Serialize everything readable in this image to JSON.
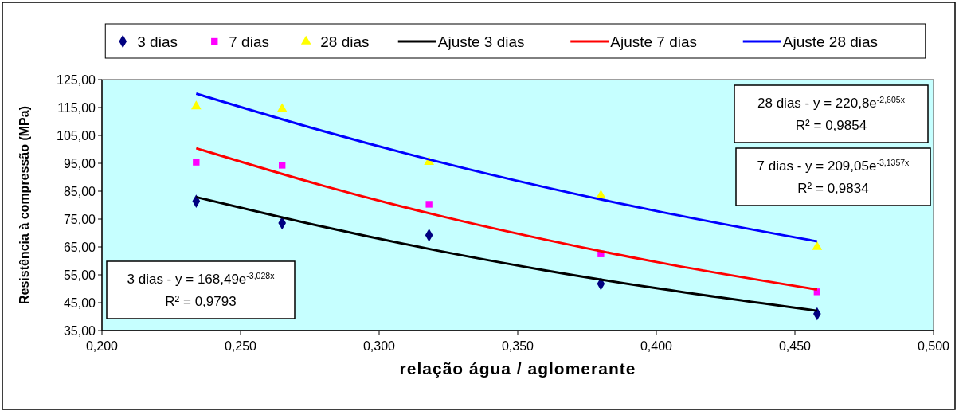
{
  "chart_data": {
    "type": "scatter",
    "xlabel": "relação água / aglomerante",
    "ylabel": "Resistência à compressão (MPa)",
    "xlim": [
      0.2,
      0.5
    ],
    "xticks": [
      {
        "value": 0.2,
        "label": "0,200"
      },
      {
        "value": 0.25,
        "label": "0,250"
      },
      {
        "value": 0.3,
        "label": "0,300"
      },
      {
        "value": 0.35,
        "label": "0,350"
      },
      {
        "value": 0.4,
        "label": "0,400"
      },
      {
        "value": 0.45,
        "label": "0,450"
      },
      {
        "value": 0.5,
        "label": "0,500"
      }
    ],
    "ylim": [
      35,
      125
    ],
    "yticks": [
      {
        "value": 35,
        "label": "35,00"
      },
      {
        "value": 45,
        "label": "45,00"
      },
      {
        "value": 55,
        "label": "55,00"
      },
      {
        "value": 65,
        "label": "65,00"
      },
      {
        "value": 75,
        "label": "75,00"
      },
      {
        "value": 85,
        "label": "85,00"
      },
      {
        "value": 95,
        "label": "95,00"
      },
      {
        "value": 105,
        "label": "105,00"
      },
      {
        "value": 115,
        "label": "115,00"
      },
      {
        "value": 125,
        "label": "125,00"
      }
    ],
    "grid": false,
    "legend": "top",
    "series": [
      {
        "name": "3 dias",
        "type": "scatter",
        "marker": "diamond",
        "color": "#000080",
        "x": [
          0.234,
          0.265,
          0.318,
          0.38,
          0.458
        ],
        "values": [
          81.4,
          73.6,
          69.2,
          51.8,
          41.0
        ]
      },
      {
        "name": "7 dias",
        "type": "scatter",
        "marker": "square",
        "color": "#ff00ff",
        "x": [
          0.234,
          0.265,
          0.318,
          0.38,
          0.458
        ],
        "values": [
          95.4,
          94.3,
          80.3,
          62.5,
          48.9
        ]
      },
      {
        "name": "28 dias",
        "type": "scatter",
        "marker": "triangle",
        "color": "#ffff00",
        "x": [
          0.234,
          0.265,
          0.318,
          0.38,
          0.458
        ],
        "values": [
          115.4,
          114.5,
          95.5,
          83.4,
          65.0
        ]
      },
      {
        "name": "Ajuste 3 dias",
        "type": "line",
        "marker": "none",
        "color": "#000000",
        "x": [
          0.234,
          0.28,
          0.32,
          0.36,
          0.4,
          0.458
        ],
        "values": [
          82.9,
          72.2,
          63.9,
          56.6,
          50.2,
          42.1
        ]
      },
      {
        "name": "Ajuste 7 dias",
        "type": "line",
        "marker": "none",
        "color": "#ff0000",
        "x": [
          0.234,
          0.28,
          0.32,
          0.36,
          0.4,
          0.458
        ],
        "values": [
          100.4,
          86.9,
          76.6,
          67.6,
          59.6,
          49.7
        ]
      },
      {
        "name": "Ajuste 28 dias",
        "type": "line",
        "marker": "none",
        "color": "#0000ff",
        "x": [
          0.234,
          0.28,
          0.32,
          0.36,
          0.4,
          0.458
        ],
        "values": [
          120.0,
          106.5,
          95.9,
          86.4,
          77.9,
          67.0
        ]
      }
    ],
    "annotations": [
      "3 dias - y = 168,49e$^{-3,028x}$\nR² = 0,9793",
      "28 dias - y = 220,8e$^{-2,605x}$\nR² = 0,9854",
      "7 dias - y = 209,05e$^{-3,1357x}$\nR² = 0,9834"
    ]
  }
}
